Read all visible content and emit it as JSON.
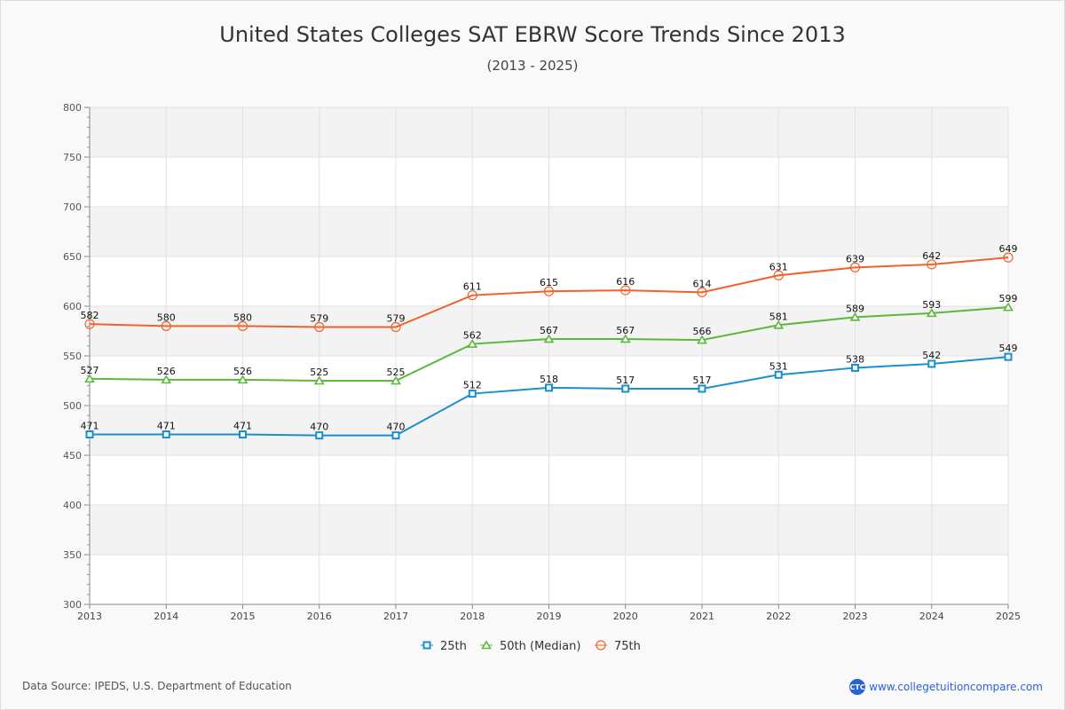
{
  "chart_data": {
    "type": "line",
    "title": "United States Colleges SAT EBRW Score Trends Since 2013",
    "subtitle": "(2013 - 2025)",
    "x": [
      "2013",
      "2014",
      "2015",
      "2016",
      "2017",
      "2018",
      "2019",
      "2020",
      "2021",
      "2022",
      "2023",
      "2024",
      "2025"
    ],
    "ylim": [
      300,
      800
    ],
    "yticks": [
      300,
      350,
      400,
      450,
      500,
      550,
      600,
      650,
      700,
      750,
      800
    ],
    "grid": true,
    "legend_position": "bottom-center",
    "series": [
      {
        "name": "25th",
        "color": "#1a8fcf",
        "marker": "square",
        "values": [
          471,
          471,
          471,
          470,
          470,
          512,
          518,
          517,
          517,
          531,
          538,
          542,
          549
        ]
      },
      {
        "name": "50th (Median)",
        "color": "#5cb83c",
        "marker": "triangle",
        "values": [
          527,
          526,
          526,
          525,
          525,
          562,
          567,
          567,
          566,
          581,
          589,
          593,
          599
        ]
      },
      {
        "name": "75th",
        "color": "#f0622a",
        "marker": "circle",
        "values": [
          582,
          580,
          580,
          579,
          579,
          611,
          615,
          616,
          614,
          631,
          639,
          642,
          649
        ]
      }
    ]
  },
  "footer": {
    "source": "Data Source: IPEDS, U.S. Department of Education",
    "logo_text": "CTC",
    "website": "www.collegetuitioncompare.com"
  }
}
